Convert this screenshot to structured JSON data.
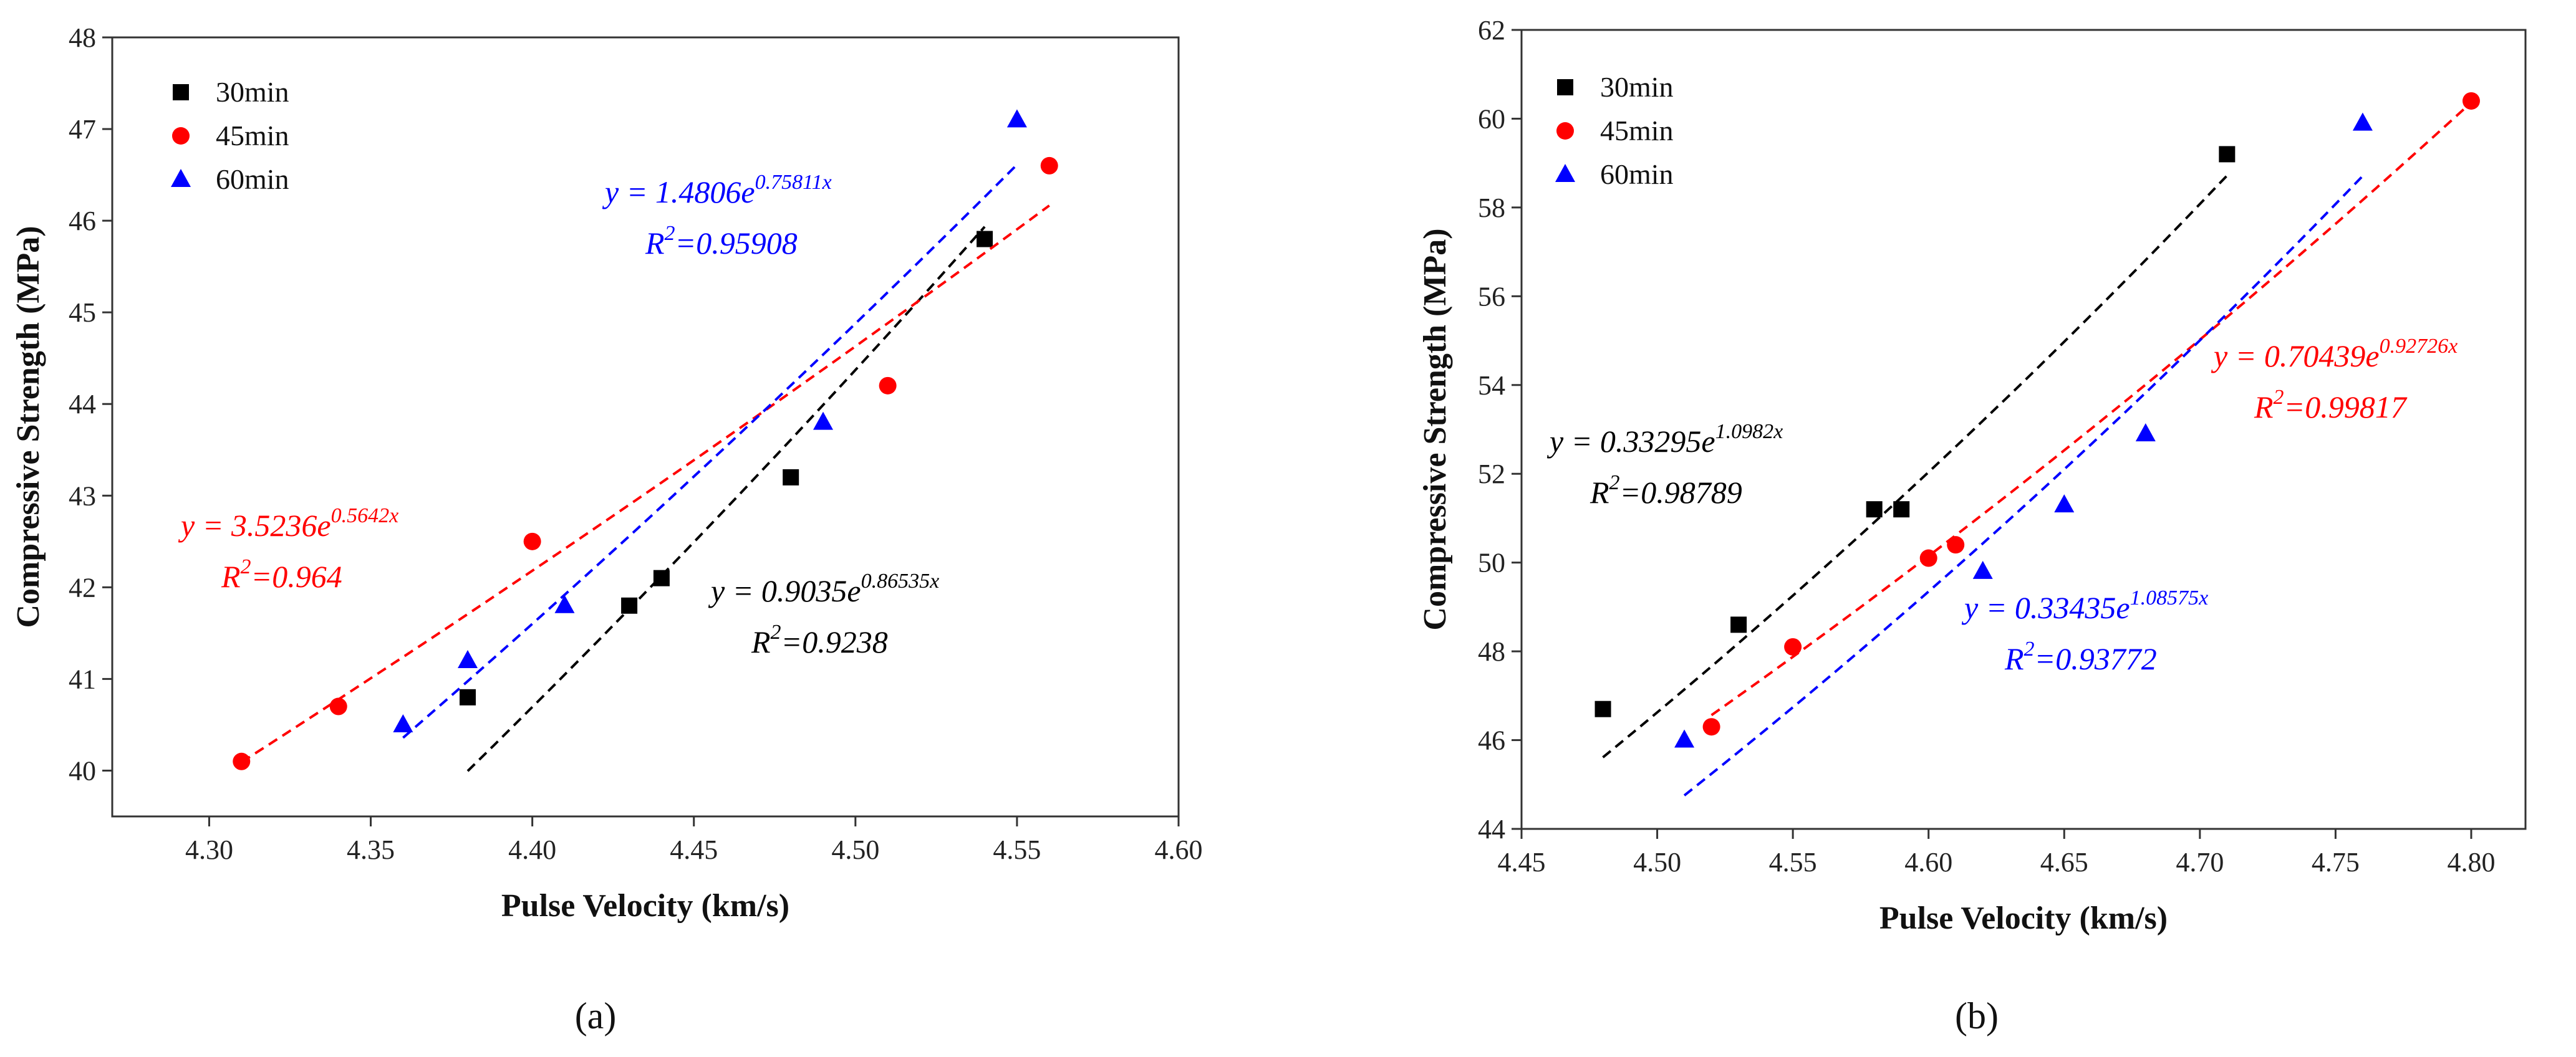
{
  "chart_data": [
    {
      "type": "scatter",
      "panel_label": "(a)",
      "xlabel": "Pulse Velocity (km/s)",
      "ylabel": "Compressive Strength (MPa)",
      "xlim": [
        4.27,
        4.6
      ],
      "ylim": [
        39.5,
        48
      ],
      "xticks": [
        "4.30",
        "4.35",
        "4.40",
        "4.45",
        "4.50",
        "4.55",
        "4.60"
      ],
      "xtick_values": [
        4.3,
        4.35,
        4.4,
        4.45,
        4.5,
        4.55,
        4.6
      ],
      "yticks": [
        "40",
        "41",
        "42",
        "43",
        "44",
        "45",
        "46",
        "47",
        "48"
      ],
      "ytick_values": [
        40,
        41,
        42,
        43,
        44,
        45,
        46,
        47,
        48
      ],
      "legend_position": "top-left",
      "series": [
        {
          "name": "30min",
          "marker": "square",
          "color": "#000000",
          "x": [
            4.38,
            4.43,
            4.44,
            4.48,
            4.54
          ],
          "y": [
            40.8,
            41.8,
            42.1,
            43.2,
            45.8
          ],
          "fit": {
            "a": 0.9035,
            "b": 0.86535,
            "x_range": [
              4.38,
              4.54
            ]
          },
          "equation": {
            "prefix": "y = 0.9035e",
            "exponent": "0.86535x",
            "r2_prefix": "R",
            "r2_sup": "2",
            "r2_value": "=0.9238"
          }
        },
        {
          "name": "45min",
          "marker": "circle",
          "color": "#ff0000",
          "x": [
            4.31,
            4.34,
            4.4,
            4.51,
            4.56
          ],
          "y": [
            40.1,
            40.7,
            42.5,
            44.2,
            46.6
          ],
          "fit": {
            "a": 3.5236,
            "b": 0.5642,
            "x_range": [
              4.31,
              4.56
            ]
          },
          "equation": {
            "prefix": "y = 3.5236e",
            "exponent": "0.5642x",
            "r2_prefix": "R",
            "r2_sup": "2",
            "r2_value": "=0.964"
          }
        },
        {
          "name": "60min",
          "marker": "triangle",
          "color": "#0000ff",
          "x": [
            4.36,
            4.38,
            4.41,
            4.49,
            4.55
          ],
          "y": [
            40.5,
            41.2,
            41.8,
            43.8,
            47.1
          ],
          "fit": {
            "a": 1.4806,
            "b": 0.75811,
            "x_range": [
              4.36,
              4.55
            ]
          },
          "equation": {
            "prefix": "y = 1.4806e",
            "exponent": "0.75811x",
            "r2_prefix": "R",
            "r2_sup": "2",
            "r2_value": "=0.95908"
          }
        }
      ]
    },
    {
      "type": "scatter",
      "panel_label": "(b)",
      "xlabel": "Pulse Velocity (km/s)",
      "ylabel": "Compressive Strength (MPa)",
      "xlim": [
        4.45,
        4.82
      ],
      "ylim": [
        44,
        62
      ],
      "xticks": [
        "4.45",
        "4.50",
        "4.55",
        "4.60",
        "4.65",
        "4.70",
        "4.75",
        "4.80"
      ],
      "xtick_values": [
        4.45,
        4.5,
        4.55,
        4.6,
        4.65,
        4.7,
        4.75,
        4.8
      ],
      "yticks": [
        "44",
        "46",
        "48",
        "50",
        "52",
        "54",
        "56",
        "58",
        "60",
        "62"
      ],
      "ytick_values": [
        44,
        46,
        48,
        50,
        52,
        54,
        56,
        58,
        60,
        62
      ],
      "legend_position": "top-left",
      "series": [
        {
          "name": "30min",
          "marker": "square",
          "color": "#000000",
          "x": [
            4.48,
            4.53,
            4.58,
            4.59,
            4.71
          ],
          "y": [
            46.7,
            48.6,
            51.2,
            51.2,
            59.2
          ],
          "fit": {
            "a": 0.33295,
            "b": 1.0982,
            "x_range": [
              4.48,
              4.71
            ]
          },
          "equation": {
            "prefix": "y = 0.33295e",
            "exponent": "1.0982x",
            "r2_prefix": "R",
            "r2_sup": "2",
            "r2_value": "=0.98789"
          }
        },
        {
          "name": "45min",
          "marker": "circle",
          "color": "#ff0000",
          "x": [
            4.52,
            4.55,
            4.6,
            4.61,
            4.8
          ],
          "y": [
            46.3,
            48.1,
            50.1,
            50.4,
            60.4
          ],
          "fit": {
            "a": 0.70439,
            "b": 0.92726,
            "x_range": [
              4.52,
              4.8
            ]
          },
          "equation": {
            "prefix": "y = 0.70439e",
            "exponent": "0.92726x",
            "r2_prefix": "R",
            "r2_sup": "2",
            "r2_value": "=0.99817"
          }
        },
        {
          "name": "60min",
          "marker": "triangle",
          "color": "#0000ff",
          "x": [
            4.51,
            4.62,
            4.65,
            4.68,
            4.76
          ],
          "y": [
            46.0,
            49.8,
            51.3,
            52.9,
            59.9
          ],
          "fit": {
            "a": 0.33435,
            "b": 1.08575,
            "x_range": [
              4.51,
              4.76
            ]
          },
          "equation": {
            "prefix": "y = 0.33435e",
            "exponent": "1.08575x",
            "r2_prefix": "R",
            "r2_sup": "2",
            "r2_value": "=0.93772"
          }
        }
      ]
    }
  ]
}
